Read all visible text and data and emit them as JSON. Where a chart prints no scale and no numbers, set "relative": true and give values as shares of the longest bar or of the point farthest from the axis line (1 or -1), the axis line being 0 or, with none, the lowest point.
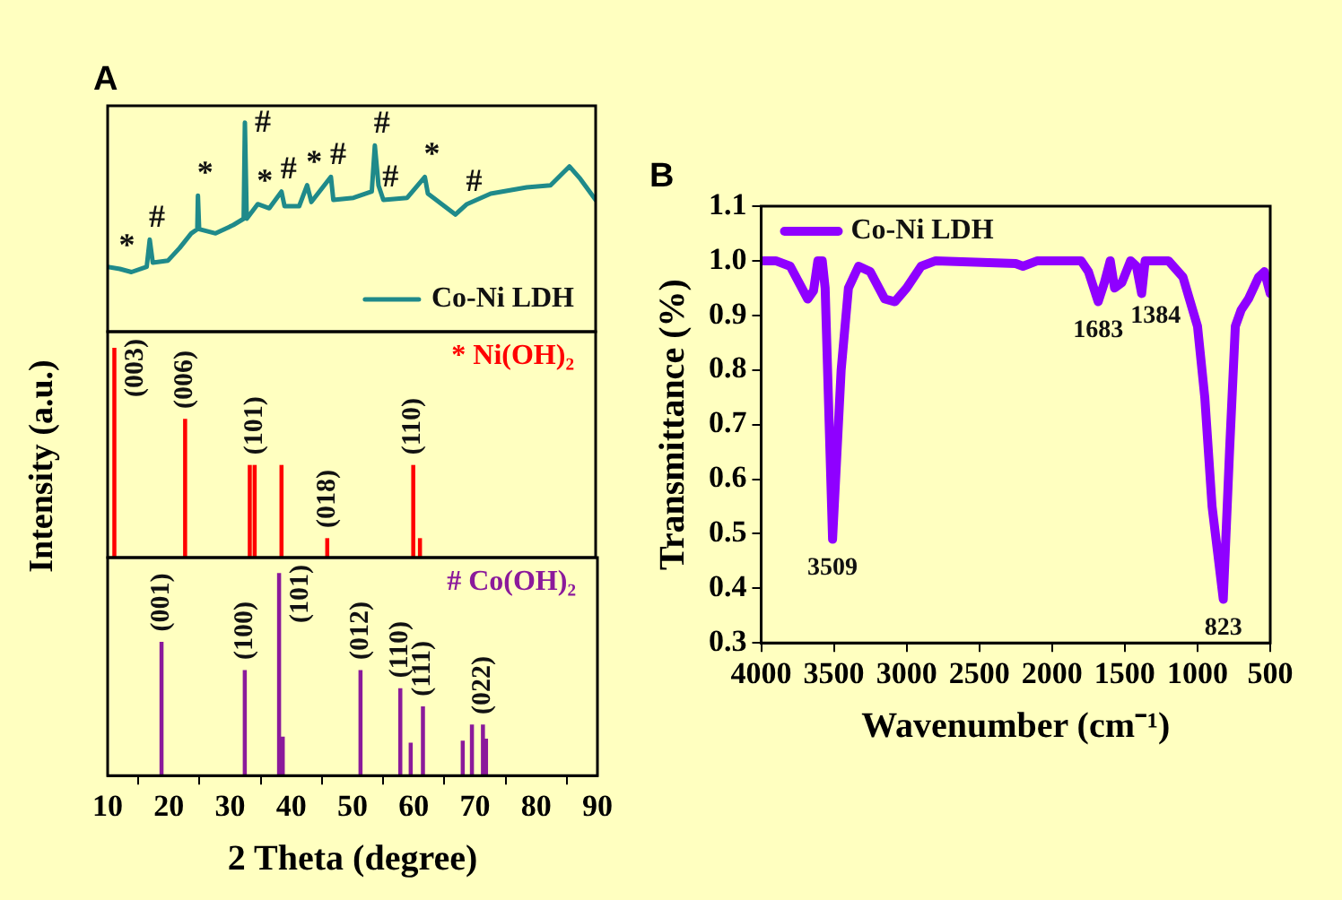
{
  "chart_data": [
    {
      "type": "line",
      "title": "A",
      "relative": true,
      "xlim": [
        10,
        90
      ],
      "tick_labels": false,
      "legend": "bottom right",
      "series": [
        {
          "name": "Co-Ni LDH",
          "color": "#1f8a8a",
          "x": [
            10,
            12,
            13.9,
            16.4,
            16.9,
            17.4,
            19.9,
            21.8,
            23.7,
            24.7,
            24.8,
            25,
            27.7,
            30.6,
            32.3,
            32.5,
            32.8,
            34.6,
            36.5,
            38.5,
            39,
            41.4,
            42.7,
            43.4,
            46.6,
            47,
            50.3,
            53.3,
            53.8,
            54.4,
            55.2,
            59.1,
            62,
            62.5,
            67,
            68.9,
            72.8,
            78.7,
            82.6,
            85.7,
            87.5,
            90
          ],
          "values": [
            0.31,
            0.3,
            0.285,
            0.31,
            0.44,
            0.33,
            0.34,
            0.4,
            0.47,
            0.49,
            0.65,
            0.49,
            0.47,
            0.51,
            0.54,
            1,
            0.54,
            0.61,
            0.59,
            0.67,
            0.6,
            0.6,
            0.7,
            0.62,
            0.74,
            0.63,
            0.64,
            0.67,
            0.89,
            0.7,
            0.63,
            0.64,
            0.74,
            0.66,
            0.56,
            0.61,
            0.66,
            0.69,
            0.7,
            0.79,
            0.73,
            0.63
          ]
        }
      ],
      "annotations": [
        {
          "text": "*",
          "x": 12,
          "y": 0.3
        },
        {
          "text": "#",
          "x": 16.9,
          "y": 0.44
        },
        {
          "text": "*",
          "x": 24.8,
          "y": 0.65
        },
        {
          "text": "#",
          "x": 32.5,
          "y": 1
        },
        {
          "text": "*",
          "x": 34.6,
          "y": 0.61
        },
        {
          "text": "#",
          "x": 38.5,
          "y": 0.67
        },
        {
          "text": "*",
          "x": 42.7,
          "y": 0.7
        },
        {
          "text": "#",
          "x": 46.6,
          "y": 0.74
        },
        {
          "text": "#",
          "x": 53.8,
          "y": 0.89
        },
        {
          "text": "#",
          "x": 55.2,
          "y": 0.63
        },
        {
          "text": "*",
          "x": 62,
          "y": 0.74
        },
        {
          "text": "#",
          "x": 68.9,
          "y": 0.61
        }
      ]
    },
    {
      "type": "bar",
      "ylabel": "Intensity (a.u.)",
      "relative": true,
      "xlim": [
        10,
        90
      ],
      "tick_labels": false,
      "legend": "top right",
      "series": [
        {
          "name": "* Ni(OH)₂",
          "color": "#ff0000",
          "x": [
            11.1,
            22.7,
            33.3,
            34.1,
            38.5,
            46,
            60.1,
            61.2
          ],
          "values": [
            1,
            0.66,
            0.44,
            0.44,
            0.44,
            0.09,
            0.44,
            0.09
          ]
        }
      ],
      "annotations": [
        {
          "text": "(003)",
          "x": 11.1,
          "y": 1
        },
        {
          "text": "(006)",
          "x": 22.7,
          "y": 0.66
        },
        {
          "text": "(101)",
          "x": 34.1,
          "y": 0.44
        },
        {
          "text": "(018)",
          "x": 46,
          "y": 0.09
        },
        {
          "text": "(110)",
          "x": 60.1,
          "y": 0.44
        }
      ]
    },
    {
      "type": "bar",
      "xlabel": "2 Theta (degree)",
      "relative": true,
      "xlim": [
        10,
        90
      ],
      "xticks": [
        10,
        20,
        30,
        40,
        50,
        60,
        70,
        80,
        90
      ],
      "tick_labels": "x",
      "legend": "top right",
      "series": [
        {
          "name": "# Co(OH)₂",
          "color": "#8b1a9b",
          "x": [
            18.8,
            32.4,
            38,
            38.6,
            51.3,
            57.8,
            59.5,
            61.5,
            68,
            69.5,
            71.3,
            71.8
          ],
          "values": [
            0.66,
            0.52,
            1,
            0.19,
            0.52,
            0.43,
            0.16,
            0.34,
            0.17,
            0.25,
            0.25,
            0.18
          ]
        }
      ],
      "annotations": [
        {
          "text": "(001)",
          "x": 18.8,
          "y": 0.66
        },
        {
          "text": "(100)",
          "x": 32.4,
          "y": 0.52
        },
        {
          "text": "(101)",
          "x": 38,
          "y": 1
        },
        {
          "text": "(012)",
          "x": 51.3,
          "y": 0.52
        },
        {
          "text": "(110)",
          "x": 57.8,
          "y": 0.43
        },
        {
          "text": "(111)",
          "x": 61.5,
          "y": 0.34
        },
        {
          "text": "(022)",
          "x": 71.3,
          "y": 0.25
        }
      ]
    },
    {
      "type": "line",
      "title": "B",
      "xlabel": "Wavenumber (cm⁻¹)",
      "ylabel": "Transmittance (%)",
      "xlim": [
        4000,
        500
      ],
      "xticks": [
        4000,
        3500,
        3000,
        2500,
        2000,
        1500,
        1000,
        500
      ],
      "ylim": [
        0.3,
        1.1
      ],
      "yticks": [
        0.3,
        0.4,
        0.5,
        0.6,
        0.7,
        0.8,
        0.9,
        {
          "value": 1,
          "label": "1.0"
        },
        1.1
      ],
      "legend": "top left",
      "series": [
        {
          "name": "Co-Ni LDH",
          "color": "#8f00ff",
          "x": [
            4000,
            3900,
            3800,
            3720,
            3680,
            3640,
            3610,
            3580,
            3560,
            3509,
            3450,
            3400,
            3330,
            3250,
            3150,
            3080,
            3000,
            2900,
            2800,
            2250,
            2200,
            2100,
            1800,
            1750,
            1683,
            1640,
            1600,
            1570,
            1520,
            1460,
            1420,
            1384,
            1360,
            1200,
            1100,
            1000,
            950,
            900,
            823,
            780,
            740,
            700,
            650,
            580,
            540,
            500
          ],
          "values": [
            1,
            1,
            0.99,
            0.95,
            0.93,
            0.945,
            1,
            1,
            0.95,
            0.49,
            0.8,
            0.95,
            0.99,
            0.98,
            0.93,
            0.925,
            0.95,
            0.99,
            1,
            0.995,
            0.99,
            1,
            1,
            0.98,
            0.925,
            0.96,
            1,
            0.95,
            0.96,
            1,
            0.99,
            0.94,
            1,
            1,
            0.97,
            0.88,
            0.75,
            0.55,
            0.38,
            0.65,
            0.88,
            0.91,
            0.93,
            0.97,
            0.98,
            0.94
          ]
        }
      ],
      "annotations": [
        {
          "text": "3509",
          "x": 3509,
          "y": 0.49
        },
        {
          "text": "1683",
          "x": 1683,
          "y": 0.925
        },
        {
          "text": "1384",
          "x": 1384,
          "y": 0.94
        },
        {
          "text": "823",
          "x": 823,
          "y": 0.38
        }
      ]
    }
  ]
}
